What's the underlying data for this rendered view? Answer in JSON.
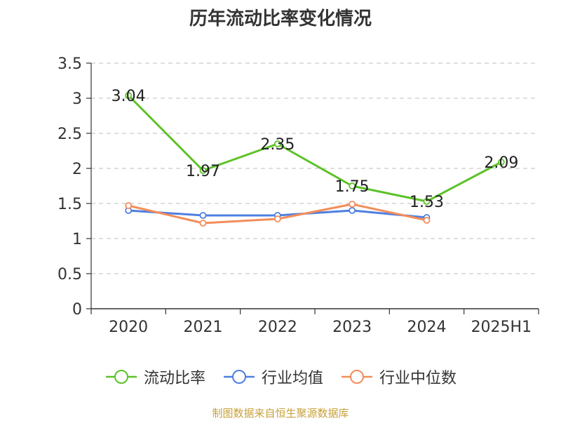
{
  "chart_data": {
    "type": "line",
    "title": "历年流动比率变化情况",
    "xlabel": "",
    "ylabel": "",
    "categories": [
      "2020",
      "2021",
      "2022",
      "2023",
      "2024",
      "2025H1"
    ],
    "ylim": [
      0,
      3.5
    ],
    "yticks": [
      "0",
      "0.5",
      "1",
      "1.5",
      "2",
      "2.5",
      "3",
      "3.5"
    ],
    "grid": true,
    "legend_position": "bottom",
    "series": [
      {
        "name": "流动比率",
        "color": "#5cc227",
        "values": [
          3.04,
          1.97,
          2.35,
          1.75,
          1.53,
          2.09
        ],
        "data_labels": [
          "3.04",
          "1.97",
          "2.35",
          "1.75",
          "1.53",
          "2.09"
        ]
      },
      {
        "name": "行业均值",
        "color": "#4f7fe0",
        "values": [
          1.4,
          1.33,
          1.33,
          1.4,
          1.3,
          null
        ]
      },
      {
        "name": "行业中位数",
        "color": "#f38d5a",
        "values": [
          1.47,
          1.22,
          1.28,
          1.49,
          1.26,
          null
        ]
      }
    ]
  },
  "footer": {
    "text": "制图数据来自恒生聚源数据库",
    "color": "#c8a13a"
  }
}
